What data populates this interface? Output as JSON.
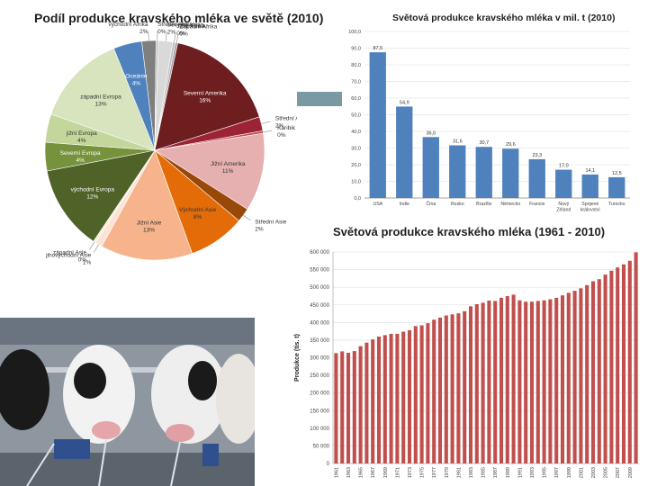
{
  "pie": {
    "title": "Podíl produkce kravského mléka ve světě (2010)",
    "chart_data": {
      "type": "pie",
      "slices": [
        {
          "label": "Východní Afrika",
          "display_label": "východní Afrika",
          "percent": 2,
          "value_label": "2%",
          "color": "#7f7f7f"
        },
        {
          "label": "Střední Afrika",
          "display_label": "Střední Afrika",
          "percent": 0,
          "value_label": "0%",
          "color": "#bfbfbf"
        },
        {
          "label": "Severní Afrika",
          "display_label": "Severní Afrika",
          "percent": 2,
          "value_label": "2%",
          "color": "#d9d9d9"
        },
        {
          "label": "Jižní Afrika",
          "display_label": "Jižní Afrika",
          "percent": 0,
          "value_label": "0%",
          "color": "#bdbdbd"
        },
        {
          "label": "Západní Afrika",
          "display_label": "Západní Afrika",
          "percent": 0,
          "value_label": "0%",
          "color": "#a6a6a6"
        },
        {
          "label": "Severní Amerika",
          "display_label": "Severní Amerika",
          "percent": 16,
          "value_label": "16%",
          "color": "#6e1e1e"
        },
        {
          "label": "Střední Amerika",
          "display_label": "Střední Amerika",
          "percent": 2,
          "value_label": "2%",
          "color": "#9b2335"
        },
        {
          "label": "Karibik",
          "display_label": "Karibik",
          "percent": 0,
          "value_label": "0%",
          "color": "#c0504d"
        },
        {
          "label": "Jižní Amerika",
          "display_label": "Jižní Amerika",
          "percent": 11,
          "value_label": "11%",
          "color": "#e6b0b0"
        },
        {
          "label": "Střední Asie",
          "display_label": "Střední Asie",
          "percent": 2,
          "value_label": "2%",
          "color": "#984807"
        },
        {
          "label": "Východní Asie",
          "display_label": "Východní Asie",
          "percent": 8,
          "value_label": "8%",
          "color": "#e36c09"
        },
        {
          "label": "Jižní Asie",
          "display_label": "Jižní Asie",
          "percent": 13,
          "value_label": "13%",
          "color": "#f6b38c"
        },
        {
          "label": "Jihovýchodní Asie",
          "display_label": "jihovýchodní Asie",
          "percent": 1,
          "value_label": "1%",
          "color": "#fbe3d5"
        },
        {
          "label": "Západní Asie",
          "display_label": "západní Asie",
          "percent": 0,
          "value_label": "0%",
          "color": "#fde9d9"
        },
        {
          "label": "Východní Evropa",
          "display_label": "východní Evropa",
          "percent": 12,
          "value_label": "12%",
          "color": "#4f6228"
        },
        {
          "label": "Severní Evropa",
          "display_label": "Severní Evropa",
          "percent": 4,
          "value_label": "4%",
          "color": "#76923c"
        },
        {
          "label": "Jižní Evropa",
          "display_label": "jižní Evropa",
          "percent": 4,
          "value_label": "4%",
          "color": "#c3d69b"
        },
        {
          "label": "Západní Evropa",
          "display_label": "západní Evropa",
          "percent": 13,
          "value_label": "13%",
          "color": "#d7e4bd"
        },
        {
          "label": "Oceánie",
          "display_label": "Oceánie",
          "percent": 4,
          "value_label": "4%",
          "color": "#4f81bd"
        }
      ]
    }
  },
  "bar1": {
    "title": "Světová produkce kravského mléka v mil. t (2010)",
    "chart_data": {
      "type": "bar",
      "categories": [
        "USA",
        "Indie",
        "Čína",
        "Rusko",
        "Brazílie",
        "Německo",
        "Francie",
        "Nový Zéland",
        "Spojené království",
        "Turecko"
      ],
      "values": [
        87.5,
        54.9,
        36.6,
        31.6,
        30.7,
        29.6,
        23.3,
        17.0,
        14.1,
        12.5
      ],
      "value_labels": [
        "87,5",
        "54,9",
        "36,6",
        "31,6",
        "30,7",
        "29,6",
        "23,3",
        "17,0",
        "14,1",
        "12,5"
      ],
      "ylim": [
        0,
        100
      ],
      "yticks": [
        0,
        10,
        20,
        30,
        40,
        50,
        60,
        70,
        80,
        90,
        100
      ],
      "ytick_labels": [
        "0,0",
        "10,0",
        "20,0",
        "30,0",
        "40,0",
        "50,0",
        "60,0",
        "70,0",
        "80,0",
        "90,0",
        "100,0"
      ],
      "grid": true,
      "color": "#4f81bd"
    }
  },
  "bar2": {
    "title": "Světová produkce kravského mléka (1961 - 2010)",
    "chart_data": {
      "type": "bar",
      "ylabel": "Produkce (tis. t)",
      "x": [
        1961,
        1962,
        1963,
        1964,
        1965,
        1966,
        1967,
        1968,
        1969,
        1970,
        1971,
        1972,
        1973,
        1974,
        1975,
        1976,
        1977,
        1978,
        1979,
        1980,
        1981,
        1982,
        1983,
        1984,
        1985,
        1986,
        1987,
        1988,
        1989,
        1990,
        1991,
        1992,
        1993,
        1994,
        1995,
        1996,
        1997,
        1998,
        1999,
        2000,
        2001,
        2002,
        2003,
        2004,
        2005,
        2006,
        2007,
        2008,
        2009,
        2010
      ],
      "xtick_labels": [
        "1961",
        "1963",
        "1965",
        "1967",
        "1969",
        "1971",
        "1973",
        "1975",
        "1977",
        "1979",
        "1981",
        "1983",
        "1985",
        "1987",
        "1989",
        "1991",
        "1993",
        "1995",
        "1997",
        "1999",
        "2001",
        "2003",
        "2005",
        "2007",
        "2009"
      ],
      "values": [
        313000,
        318000,
        314000,
        319000,
        333000,
        343000,
        352000,
        360000,
        364000,
        368000,
        368000,
        374000,
        378000,
        390000,
        392000,
        398000,
        408000,
        414000,
        420000,
        423000,
        426000,
        432000,
        446000,
        452000,
        456000,
        462000,
        461000,
        470000,
        475000,
        479000,
        463000,
        459000,
        459000,
        461000,
        463000,
        466000,
        470000,
        477000,
        484000,
        490000,
        497000,
        506000,
        517000,
        523000,
        536000,
        547000,
        556000,
        565000,
        575000,
        599000
      ],
      "ylim": [
        0,
        600000
      ],
      "yticks": [
        0,
        50000,
        100000,
        150000,
        200000,
        250000,
        300000,
        350000,
        400000,
        450000,
        500000,
        550000,
        600000
      ],
      "ytick_labels": [
        "0",
        "50 000",
        "100 000",
        "150 000",
        "200 000",
        "250 000",
        "300 000",
        "350 000",
        "400 000",
        "450 000",
        "500 000",
        "550 000",
        "600 000"
      ],
      "grid": true,
      "color": "#c0504d"
    }
  }
}
